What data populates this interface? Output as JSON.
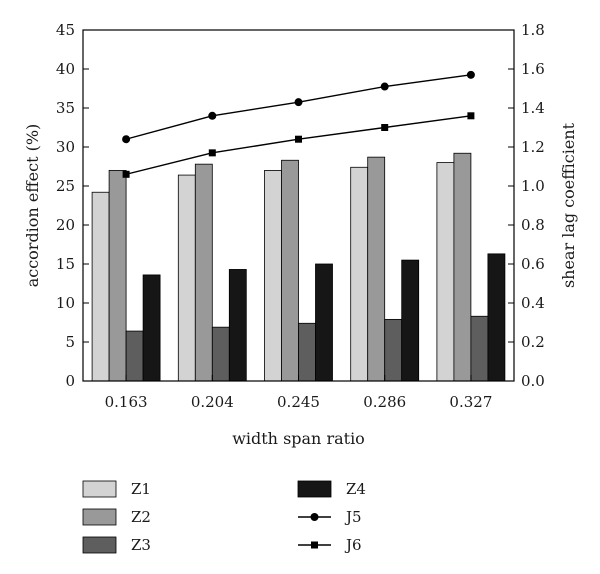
{
  "chart_data": {
    "type": "bar",
    "categories": [
      "0.163",
      "0.204",
      "0.245",
      "0.286",
      "0.327"
    ],
    "xlabel": "width span ratio",
    "ylabel": "accordion effect (%)",
    "y2label": "shear lag coefficient",
    "ylim": [
      0,
      45
    ],
    "y2lim": [
      0,
      1.8
    ],
    "yticks": [
      "0",
      "5",
      "10",
      "15",
      "20",
      "25",
      "30",
      "35",
      "40",
      "45"
    ],
    "y2ticks": [
      "0.0",
      "0.2",
      "0.4",
      "0.6",
      "0.8",
      "1.0",
      "1.2",
      "1.4",
      "1.6",
      "1.8"
    ],
    "grid": false,
    "legend_position": "bottom",
    "series": [
      {
        "name": "Z1",
        "kind": "bar",
        "axis": "left",
        "color": "#d3d3d3",
        "values": [
          24.2,
          26.4,
          27.0,
          27.4,
          28.0
        ]
      },
      {
        "name": "Z2",
        "kind": "bar",
        "axis": "left",
        "color": "#999999",
        "values": [
          27.0,
          27.8,
          28.3,
          28.7,
          29.2
        ]
      },
      {
        "name": "Z3",
        "kind": "bar",
        "axis": "left",
        "color": "#5e5e5e",
        "values": [
          6.4,
          6.9,
          7.4,
          7.9,
          8.3
        ]
      },
      {
        "name": "Z4",
        "kind": "bar",
        "axis": "left",
        "color": "#161616",
        "values": [
          13.6,
          14.3,
          15.0,
          15.5,
          16.3
        ]
      },
      {
        "name": "J5",
        "kind": "line",
        "axis": "right",
        "marker": "circle",
        "color": "#000000",
        "values": [
          1.24,
          1.36,
          1.43,
          1.51,
          1.57
        ]
      },
      {
        "name": "J6",
        "kind": "line",
        "axis": "right",
        "marker": "square",
        "color": "#000000",
        "values": [
          1.06,
          1.17,
          1.24,
          1.3,
          1.36
        ]
      }
    ]
  }
}
